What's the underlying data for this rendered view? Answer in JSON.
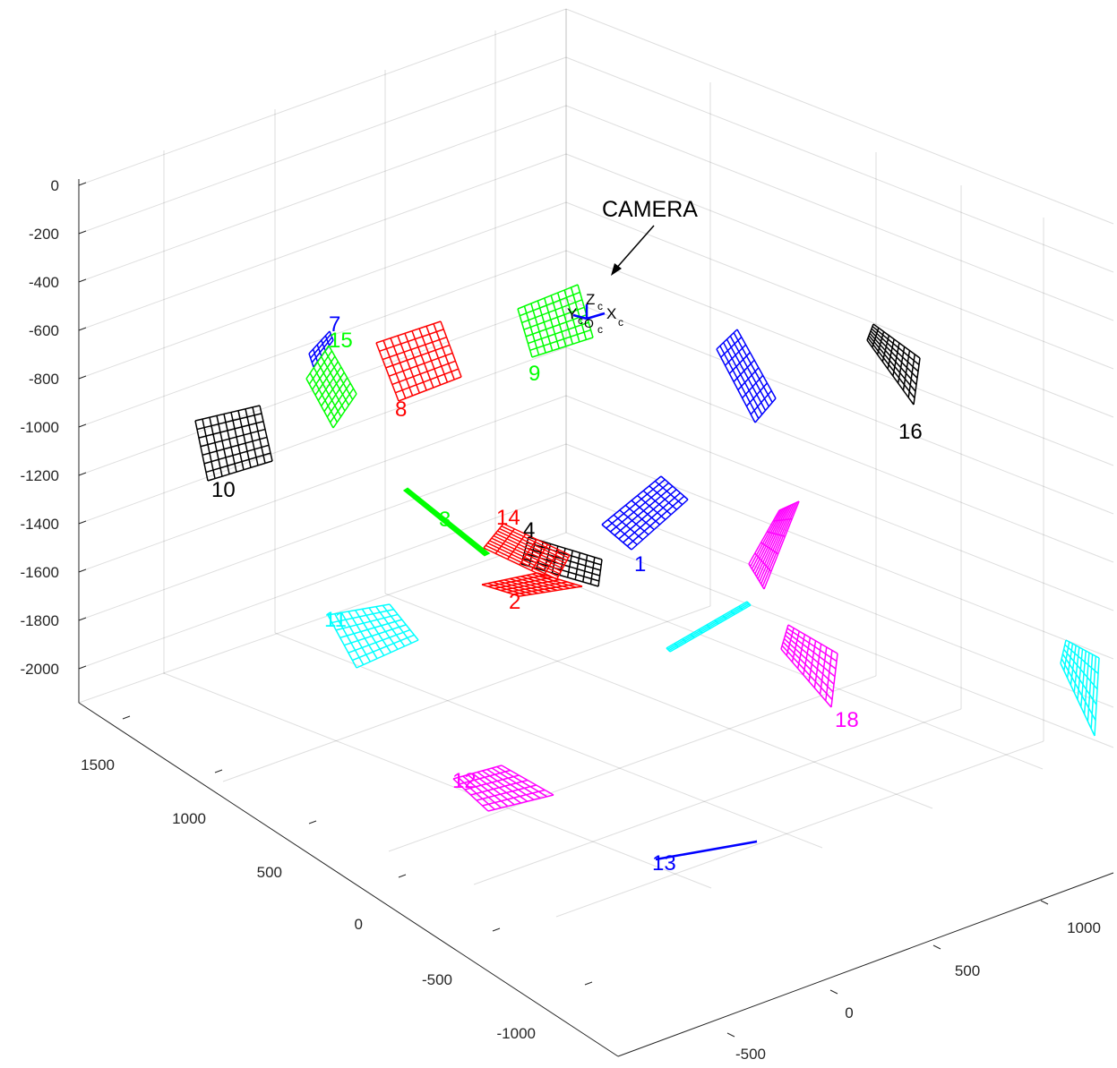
{
  "chart_data": {
    "type": "3d-extrinsics",
    "title": "",
    "xlabel": "",
    "ylabel": "",
    "zlabel": "",
    "grid": true,
    "z_axis": {
      "range": [
        -2000,
        0
      ],
      "ticks": [
        "0",
        "-200",
        "-400",
        "-600",
        "-800",
        "-1000",
        "-1200",
        "-1400",
        "-1600",
        "-1800",
        "-2000"
      ]
    },
    "left_axis": {
      "range": [
        -1000,
        1500
      ],
      "ticks": [
        "1500",
        "1000",
        "500",
        "0",
        "-500",
        "-1000"
      ]
    },
    "right_axis": {
      "range": [
        -500,
        1000
      ],
      "ticks": [
        "1000",
        "500",
        "0",
        "-500"
      ]
    },
    "annotation": {
      "text": "CAMERA"
    },
    "camera_axis_labels": [
      "Z",
      "c",
      "X",
      "c",
      "Y",
      "c",
      "O",
      "c"
    ],
    "colors": {
      "black": "#000000",
      "blue": "#0000ff",
      "red": "#ff0000",
      "green": "#00ff00",
      "magenta": "#ff00ff",
      "cyan": "#00ffff"
    },
    "boards": [
      {
        "id": "1",
        "label": "1",
        "color": "#0000ff"
      },
      {
        "id": "2",
        "label": "2",
        "color": "#ff0000"
      },
      {
        "id": "3",
        "label": "3",
        "color": "#00ff00"
      },
      {
        "id": "4",
        "label": "4",
        "color": "#000000"
      },
      {
        "id": "5",
        "label": "",
        "color": "#00ffff"
      },
      {
        "id": "6",
        "label": "",
        "color": "#0000ff"
      },
      {
        "id": "7",
        "label": "7",
        "color": "#0000ff"
      },
      {
        "id": "8",
        "label": "8",
        "color": "#ff0000"
      },
      {
        "id": "9",
        "label": "9",
        "color": "#00ff00"
      },
      {
        "id": "10",
        "label": "10",
        "color": "#000000"
      },
      {
        "id": "11",
        "label": "11",
        "color": "#00ffff"
      },
      {
        "id": "12",
        "label": "12",
        "color": "#ff00ff"
      },
      {
        "id": "13",
        "label": "13",
        "color": "#0000ff"
      },
      {
        "id": "14",
        "label": "14",
        "color": "#ff0000"
      },
      {
        "id": "15",
        "label": "15",
        "color": "#00ff00"
      },
      {
        "id": "16",
        "label": "16",
        "color": "#000000"
      },
      {
        "id": "17",
        "label": "",
        "color": "#00ffff"
      },
      {
        "id": "18",
        "label": "18",
        "color": "#ff00ff"
      },
      {
        "id": "19",
        "label": "",
        "color": "#ff00ff"
      }
    ]
  }
}
